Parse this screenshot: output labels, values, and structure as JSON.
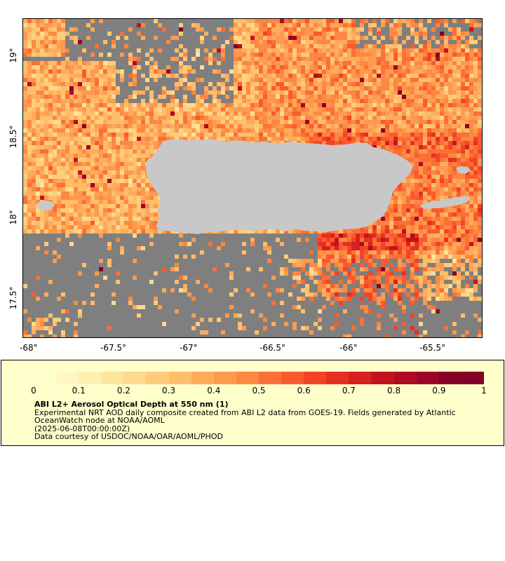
{
  "map": {
    "x_ticks": [
      "-68°",
      "-67.5°",
      "-67°",
      "-66.5°",
      "-66°",
      "-65.5°"
    ],
    "y_ticks": [
      "19°",
      "18.5°",
      "18°",
      "17.5°"
    ],
    "x_range": [
      -68.05,
      -65.17
    ],
    "y_range": [
      17.27,
      19.27
    ],
    "colors": {
      "no_data": "#7f7f7f",
      "land": "#c8c8c8",
      "frame": "#000000"
    }
  },
  "legend": {
    "colorbar_ticks": [
      "0",
      "0.1",
      "0.2",
      "0.3",
      "0.4",
      "0.5",
      "0.6",
      "0.7",
      "0.8",
      "0.9",
      "1"
    ],
    "colorbar_range": [
      0,
      1
    ],
    "colorbar_colors": [
      "#ffffcc",
      "#fff7c0",
      "#ffefb0",
      "#fee59f",
      "#fed98e",
      "#fecc7c",
      "#febe6a",
      "#feac5c",
      "#fd9a4e",
      "#fd8841",
      "#fc7037",
      "#fa5a2e",
      "#f34326",
      "#e62f21",
      "#d7201f",
      "#c5131e",
      "#b10b24",
      "#9d0526",
      "#870025",
      "#800026"
    ],
    "title": "ABI L2+ Aerosol Optical Depth at 550 nm (1)",
    "line1": "Experimental NRT AOD daily composite created from ABI L2 data from GOES-19. Fields generated by Atlantic OceanWatch node at NOAA/AOML",
    "line2": "(2025-06-08T00:00:00Z)",
    "line3": "Data courtesy of USDOC/NOAA/OAR/AOML/PHOD",
    "background": "#ffffcc"
  }
}
